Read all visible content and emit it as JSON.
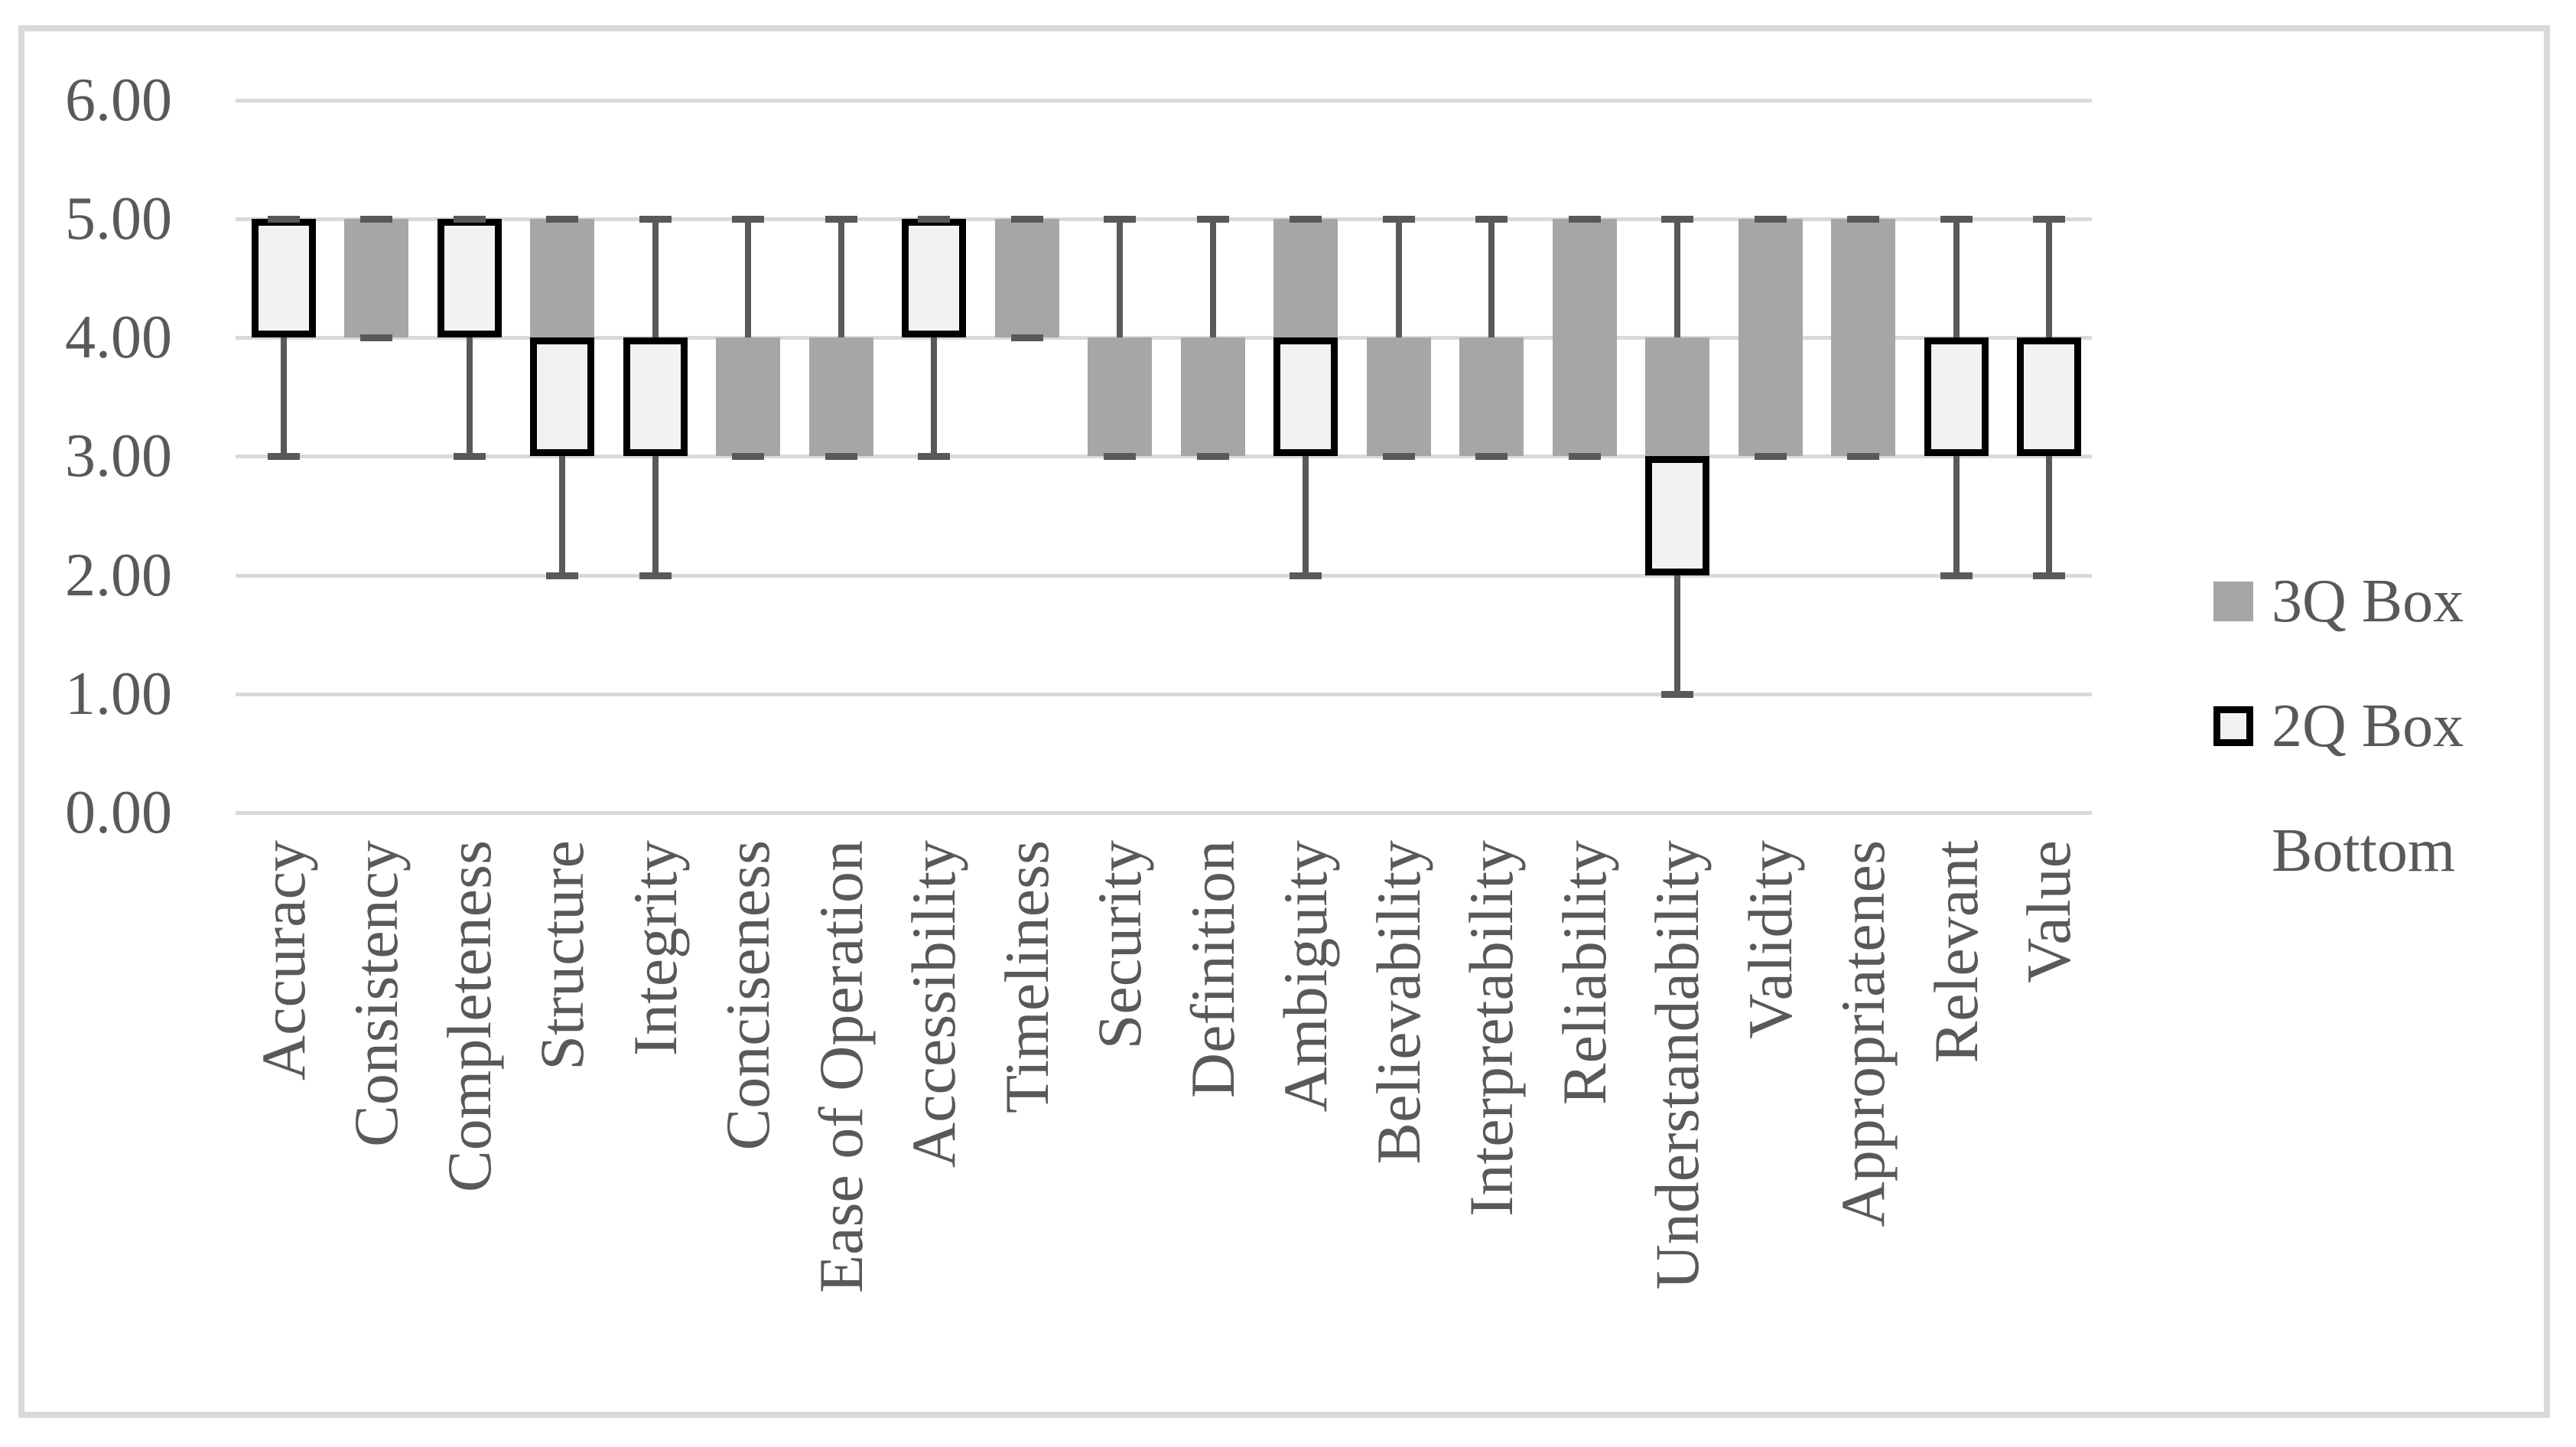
{
  "page": {
    "background": "#ffffff",
    "frame_color": "#d9d9d9"
  },
  "legend": {
    "position": "right",
    "items": [
      {
        "label": "3Q Box",
        "swatch": "gray-filled-square",
        "swatch_color": "#a6a6a6"
      },
      {
        "label": "2Q Box",
        "swatch": "light-square-black-outline",
        "swatch_fill": "#f2f2f2",
        "swatch_border": "#000000"
      },
      {
        "label": "Bottom",
        "swatch": "none"
      }
    ]
  },
  "chart_data": {
    "type": "box",
    "title": "",
    "xlabel": "",
    "ylabel": "",
    "grid": "horizontal",
    "legend_position": "right",
    "y_axis": {
      "min": 0,
      "max": 6,
      "step": 1,
      "tick_values": [
        6,
        5,
        4,
        3,
        2,
        1,
        0
      ],
      "tick_labels": [
        "6.00",
        "5.00",
        "4.00",
        "3.00",
        "2.00",
        "1.00",
        "0.00"
      ]
    },
    "categories": [
      "Accuracy",
      "Consistency",
      "Completeness",
      "Structure",
      "Integrity",
      "Conciseness",
      "Ease of Operation",
      "Accessibility",
      "Timeliness",
      "Security",
      "Definition",
      "Ambiguity",
      "Believability",
      "Interpretability",
      "Reliability",
      "Understandability",
      "Validity",
      "Appropriatenes",
      "Relevant",
      "Value"
    ],
    "boxes": [
      {
        "category": "Accuracy",
        "min": 3,
        "q1": 4,
        "median": 5,
        "q3": 5,
        "max": 5
      },
      {
        "category": "Consistency",
        "min": 4,
        "q1": 4,
        "median": 4,
        "q3": 5,
        "max": 5
      },
      {
        "category": "Completeness",
        "min": 3,
        "q1": 4,
        "median": 5,
        "q3": 5,
        "max": 5
      },
      {
        "category": "Structure",
        "min": 2,
        "q1": 3,
        "median": 4,
        "q3": 5,
        "max": 5
      },
      {
        "category": "Integrity",
        "min": 2,
        "q1": 3,
        "median": 4,
        "q3": 4,
        "max": 5
      },
      {
        "category": "Conciseness",
        "min": 3,
        "q1": 3,
        "median": 3,
        "q3": 4,
        "max": 5
      },
      {
        "category": "Ease of Operation",
        "min": 3,
        "q1": 3,
        "median": 3,
        "q3": 4,
        "max": 5
      },
      {
        "category": "Accessibility",
        "min": 3,
        "q1": 4,
        "median": 5,
        "q3": 5,
        "max": 5
      },
      {
        "category": "Timeliness",
        "min": 4,
        "q1": 4,
        "median": 4,
        "q3": 5,
        "max": 5
      },
      {
        "category": "Security",
        "min": 3,
        "q1": 3,
        "median": 3,
        "q3": 4,
        "max": 5
      },
      {
        "category": "Definition",
        "min": 3,
        "q1": 3,
        "median": 3,
        "q3": 4,
        "max": 5
      },
      {
        "category": "Ambiguity",
        "min": 2,
        "q1": 3,
        "median": 4,
        "q3": 5,
        "max": 5
      },
      {
        "category": "Believability",
        "min": 3,
        "q1": 3,
        "median": 3,
        "q3": 4,
        "max": 5
      },
      {
        "category": "Interpretability",
        "min": 3,
        "q1": 3,
        "median": 3,
        "q3": 4,
        "max": 5
      },
      {
        "category": "Reliability",
        "min": 3,
        "q1": 3,
        "median": 3,
        "q3": 5,
        "max": 5
      },
      {
        "category": "Understandability",
        "min": 1,
        "q1": 2,
        "median": 3,
        "q3": 4,
        "max": 5
      },
      {
        "category": "Validity",
        "min": 3,
        "q1": 3,
        "median": 3,
        "q3": 5,
        "max": 5
      },
      {
        "category": "Appropriatenes",
        "min": 3,
        "q1": 3,
        "median": 3,
        "q3": 5,
        "max": 5
      },
      {
        "category": "Relevant",
        "min": 2,
        "q1": 3,
        "median": 4,
        "q3": 4,
        "max": 5
      },
      {
        "category": "Value",
        "min": 2,
        "q1": 3,
        "median": 4,
        "q3": 4,
        "max": 5
      }
    ],
    "series": [
      {
        "name": "Bottom",
        "role": "invisible-stack-base-q1",
        "values": [
          4,
          4,
          4,
          3,
          3,
          3,
          3,
          4,
          4,
          3,
          3,
          3,
          3,
          3,
          3,
          2,
          3,
          3,
          3,
          3
        ]
      },
      {
        "name": "2Q Box",
        "role": "median-minus-q1-height",
        "values": [
          1,
          0,
          1,
          1,
          1,
          0,
          0,
          1,
          0,
          0,
          0,
          1,
          0,
          0,
          0,
          1,
          0,
          0,
          1,
          1
        ]
      },
      {
        "name": "3Q Box",
        "role": "q3-minus-median-height",
        "values": [
          0,
          1,
          0,
          1,
          0,
          1,
          1,
          0,
          1,
          1,
          1,
          1,
          1,
          1,
          2,
          1,
          2,
          2,
          0,
          0
        ]
      }
    ],
    "whiskers": {
      "min": [
        3,
        4,
        3,
        2,
        2,
        3,
        3,
        3,
        4,
        3,
        3,
        2,
        3,
        3,
        3,
        1,
        3,
        3,
        2,
        2
      ],
      "max": [
        5,
        5,
        5,
        5,
        5,
        5,
        5,
        5,
        5,
        5,
        5,
        5,
        5,
        5,
        5,
        5,
        5,
        5,
        5,
        5
      ]
    },
    "colors": {
      "q3_box": "#a6a6a6",
      "q2_box_fill": "#f2f2f2",
      "q2_box_border": "#000000",
      "whisker": "#595959",
      "gridline": "#d9d9d9",
      "text": "#595959",
      "frame": "#d9d9d9"
    }
  }
}
